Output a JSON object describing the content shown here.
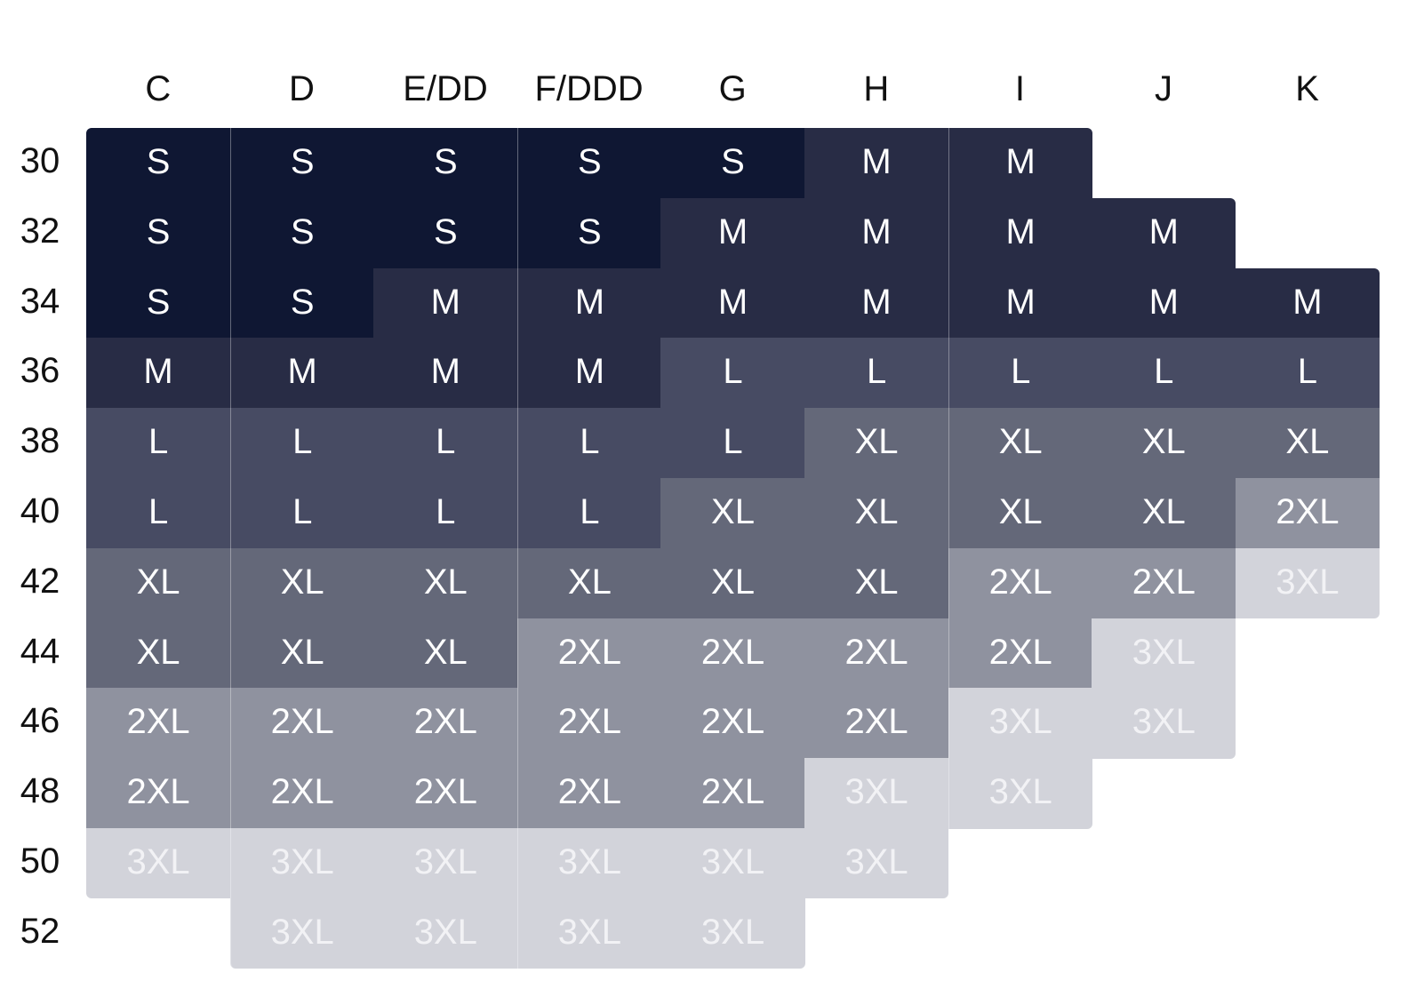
{
  "chart_data": {
    "type": "table",
    "title": "",
    "columns": [
      "C",
      "D",
      "E/DD",
      "F/DDD",
      "G",
      "H",
      "I",
      "J",
      "K"
    ],
    "rows": [
      "30",
      "32",
      "34",
      "36",
      "38",
      "40",
      "42",
      "44",
      "46",
      "48",
      "50",
      "52"
    ],
    "cells": [
      [
        "S",
        "S",
        "S",
        "S",
        "S",
        "M",
        "M",
        "",
        ""
      ],
      [
        "S",
        "S",
        "S",
        "S",
        "M",
        "M",
        "M",
        "M",
        ""
      ],
      [
        "S",
        "S",
        "M",
        "M",
        "M",
        "M",
        "M",
        "M",
        "M"
      ],
      [
        "M",
        "M",
        "M",
        "M",
        "L",
        "L",
        "L",
        "L",
        "L"
      ],
      [
        "L",
        "L",
        "L",
        "L",
        "L",
        "XL",
        "XL",
        "XL",
        "XL"
      ],
      [
        "L",
        "L",
        "L",
        "L",
        "XL",
        "XL",
        "XL",
        "XL",
        "2XL"
      ],
      [
        "XL",
        "XL",
        "XL",
        "XL",
        "XL",
        "XL",
        "2XL",
        "2XL",
        "3XL"
      ],
      [
        "XL",
        "XL",
        "XL",
        "2XL",
        "2XL",
        "2XL",
        "2XL",
        "3XL",
        ""
      ],
      [
        "2XL",
        "2XL",
        "2XL",
        "2XL",
        "2XL",
        "2XL",
        "3XL",
        "3XL",
        ""
      ],
      [
        "2XL",
        "2XL",
        "2XL",
        "2XL",
        "2XL",
        "3XL",
        "3XL",
        "",
        ""
      ],
      [
        "3XL",
        "3XL",
        "3XL",
        "3XL",
        "3XL",
        "3XL",
        "",
        "",
        ""
      ],
      [
        "",
        "3XL",
        "3XL",
        "3XL",
        "3XL",
        "",
        "",
        "",
        ""
      ]
    ],
    "size_colors": {
      "S": "#0f1733",
      "M": "#282c45",
      "L": "#474b63",
      "XL": "#646879",
      "2XL": "#8f929f",
      "3XL": "#d2d3da"
    },
    "text_colors": {
      "S": "#ffffff",
      "M": "#ffffff",
      "L": "#ffffff",
      "XL": "#ffffff",
      "2XL": "#ffffff",
      "3XL": "#f2f2f5"
    }
  }
}
